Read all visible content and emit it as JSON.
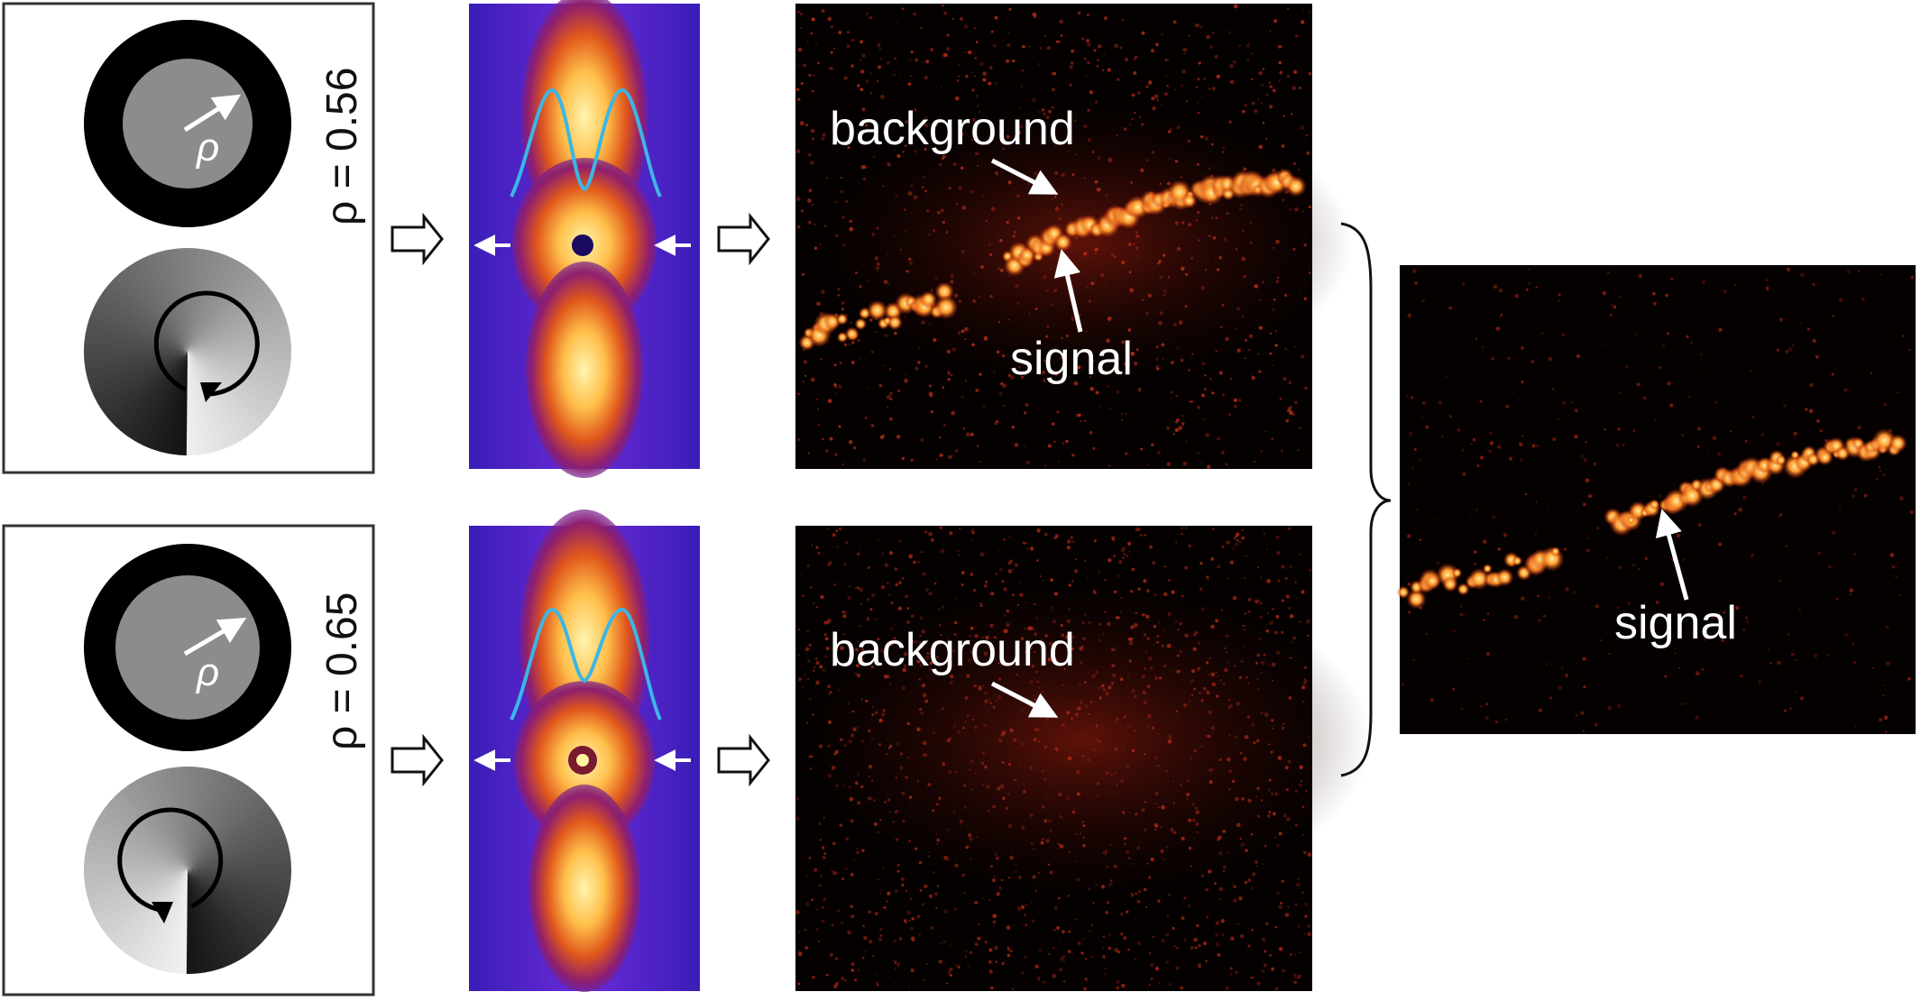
{
  "rows": [
    {
      "id": "top",
      "rho_label": "ρ = 0.56",
      "pupil_symbol": "ρ",
      "vortex_direction": "clockwise",
      "detection_labels": [
        "background",
        "signal"
      ],
      "signal_visible": true
    },
    {
      "id": "bottom",
      "rho_label": "ρ = 0.65",
      "pupil_symbol": "ρ",
      "vortex_direction": "counterclockwise",
      "detection_labels": [
        "background"
      ],
      "signal_visible": false
    }
  ],
  "result": {
    "label": "signal"
  },
  "colors": {
    "psf_background": "#4a1fc9",
    "psf_core": "#fff3a0",
    "profile_curve": "#3cb6e6",
    "image_background": "#050101",
    "signal": "#ffb347",
    "frame": "#333333"
  },
  "icons": [
    "process-arrow-icon",
    "bracket-icon",
    "pointer-arrow-icon"
  ]
}
